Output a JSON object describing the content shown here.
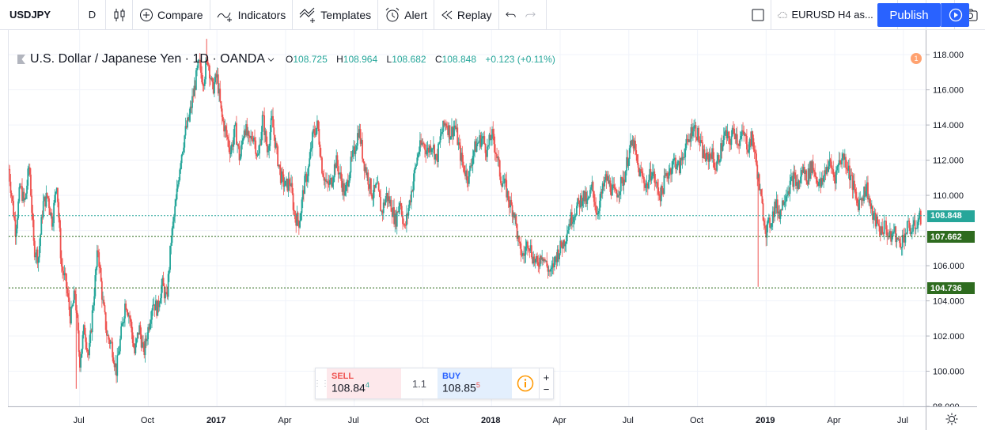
{
  "toolbar": {
    "symbol": "USDJPY",
    "interval": "D",
    "compare": "Compare",
    "indicators": "Indicators",
    "templates": "Templates",
    "alert": "Alert",
    "replay": "Replay",
    "layout": "EURUSD H4 as...",
    "publish": "Publish"
  },
  "legend": {
    "title": "U.S. Dollar / Japanese Yen · 1D · OANDA",
    "o_label": "O",
    "o": "108.725",
    "h_label": "H",
    "h": "108.964",
    "l_label": "L",
    "l": "108.682",
    "c_label": "C",
    "c": "108.848",
    "change": "+0.123 (+0.11%)"
  },
  "orange_badge": "1",
  "trade": {
    "sell_label": "SELL",
    "sell_main": "108.84",
    "sell_sup": "4",
    "spread": "1.1",
    "buy_label": "BUY",
    "buy_main": "108.85",
    "buy_sup": "5",
    "plus": "+",
    "minus": "−"
  },
  "price_tags": {
    "last": "108.848",
    "line1": "107.662",
    "line2": "104.736"
  },
  "colors": {
    "up": "#26a69a",
    "down": "#ef5350",
    "last_line": "#26a69a",
    "hline": "#2e6b1f"
  },
  "chart_data": {
    "type": "candlestick",
    "symbol": "USDJPY",
    "interval": "1D",
    "ylim": [
      98,
      119.4
    ],
    "yticks": [
      "118.000",
      "116.000",
      "114.000",
      "112.000",
      "110.000",
      "106.000",
      "104.000",
      "102.000",
      "100.000",
      "98.000"
    ],
    "xticks": [
      {
        "label": "Jul",
        "m": 6.5
      },
      {
        "label": "Oct",
        "m": 9.5
      },
      {
        "label": "2017",
        "m": 12.5
      },
      {
        "label": "Apr",
        "m": 15.5
      },
      {
        "label": "Jul",
        "m": 18.5
      },
      {
        "label": "Oct",
        "m": 21.5
      },
      {
        "label": "2018",
        "m": 24.5
      },
      {
        "label": "Apr",
        "m": 27.5
      },
      {
        "label": "Jul",
        "m": 30.5
      },
      {
        "label": "Oct",
        "m": 33.5
      },
      {
        "label": "2019",
        "m": 36.5
      },
      {
        "label": "Apr",
        "m": 39.5
      },
      {
        "label": "Jul",
        "m": 42.5
      }
    ],
    "xlim_months": [
      3.4,
      43.3
    ],
    "last_price": 108.848,
    "hlines": [
      107.662,
      104.736
    ],
    "path": [
      [
        3.4,
        111.5
      ],
      [
        3.7,
        108.0
      ],
      [
        3.9,
        110.5
      ],
      [
        4.1,
        109.5
      ],
      [
        4.3,
        111.8
      ],
      [
        4.5,
        107.0
      ],
      [
        4.7,
        106.5
      ],
      [
        4.9,
        109.5
      ],
      [
        5.1,
        110.0
      ],
      [
        5.3,
        108.5
      ],
      [
        5.5,
        110.8
      ],
      [
        5.7,
        106.0
      ],
      [
        5.9,
        105.0
      ],
      [
        6.1,
        103.0
      ],
      [
        6.3,
        104.5
      ],
      [
        6.5,
        100.5
      ],
      [
        6.7,
        102.5
      ],
      [
        6.9,
        100.8
      ],
      [
        7.1,
        104.0
      ],
      [
        7.3,
        107.0
      ],
      [
        7.5,
        104.0
      ],
      [
        7.7,
        102.0
      ],
      [
        7.9,
        101.5
      ],
      [
        8.1,
        100.0
      ],
      [
        8.3,
        102.0
      ],
      [
        8.5,
        104.0
      ],
      [
        8.7,
        103.0
      ],
      [
        8.9,
        101.0
      ],
      [
        9.1,
        102.5
      ],
      [
        9.3,
        101.0
      ],
      [
        9.5,
        102.5
      ],
      [
        9.7,
        104.0
      ],
      [
        9.9,
        103.5
      ],
      [
        10.1,
        105.0
      ],
      [
        10.3,
        104.0
      ],
      [
        10.5,
        107.5
      ],
      [
        10.7,
        109.5
      ],
      [
        10.9,
        112.0
      ],
      [
        11.1,
        113.5
      ],
      [
        11.3,
        114.5
      ],
      [
        11.5,
        116.0
      ],
      [
        11.7,
        117.5
      ],
      [
        11.9,
        116.5
      ],
      [
        12.1,
        117.8
      ],
      [
        12.3,
        116.0
      ],
      [
        12.5,
        116.8
      ],
      [
        12.7,
        114.5
      ],
      [
        12.9,
        113.5
      ],
      [
        13.1,
        112.5
      ],
      [
        13.3,
        113.8
      ],
      [
        13.5,
        112.0
      ],
      [
        13.7,
        114.0
      ],
      [
        13.9,
        113.0
      ],
      [
        14.1,
        113.5
      ],
      [
        14.3,
        112.0
      ],
      [
        14.5,
        114.5
      ],
      [
        14.7,
        112.5
      ],
      [
        14.9,
        114.3
      ],
      [
        15.1,
        112.5
      ],
      [
        15.3,
        111.0
      ],
      [
        15.5,
        110.5
      ],
      [
        15.7,
        110.8
      ],
      [
        15.9,
        108.8
      ],
      [
        16.1,
        108.5
      ],
      [
        16.3,
        110.5
      ],
      [
        16.5,
        111.5
      ],
      [
        16.7,
        113.5
      ],
      [
        16.9,
        114.0
      ],
      [
        17.1,
        111.5
      ],
      [
        17.3,
        110.5
      ],
      [
        17.5,
        110.8
      ],
      [
        17.7,
        112.0
      ],
      [
        17.9,
        111.0
      ],
      [
        18.1,
        110.0
      ],
      [
        18.3,
        111.5
      ],
      [
        18.5,
        112.5
      ],
      [
        18.7,
        113.8
      ],
      [
        18.9,
        112.0
      ],
      [
        19.1,
        111.0
      ],
      [
        19.3,
        110.0
      ],
      [
        19.5,
        110.5
      ],
      [
        19.7,
        109.0
      ],
      [
        19.9,
        110.0
      ],
      [
        20.1,
        109.5
      ],
      [
        20.3,
        108.5
      ],
      [
        20.5,
        109.8
      ],
      [
        20.7,
        108.0
      ],
      [
        20.9,
        109.5
      ],
      [
        21.1,
        111.0
      ],
      [
        21.3,
        112.5
      ],
      [
        21.5,
        113.0
      ],
      [
        21.7,
        112.5
      ],
      [
        21.9,
        113.0
      ],
      [
        22.1,
        112.0
      ],
      [
        22.3,
        113.5
      ],
      [
        22.5,
        114.2
      ],
      [
        22.7,
        113.5
      ],
      [
        22.9,
        114.0
      ],
      [
        23.1,
        112.5
      ],
      [
        23.3,
        111.5
      ],
      [
        23.5,
        111.0
      ],
      [
        23.7,
        112.5
      ],
      [
        23.9,
        113.0
      ],
      [
        24.1,
        113.3
      ],
      [
        24.3,
        112.5
      ],
      [
        24.5,
        113.5
      ],
      [
        24.7,
        112.5
      ],
      [
        24.9,
        111.0
      ],
      [
        25.1,
        110.5
      ],
      [
        25.3,
        109.5
      ],
      [
        25.5,
        109.0
      ],
      [
        25.7,
        107.0
      ],
      [
        25.9,
        106.5
      ],
      [
        26.1,
        107.5
      ],
      [
        26.3,
        106.5
      ],
      [
        26.5,
        106.0
      ],
      [
        26.7,
        106.8
      ],
      [
        26.9,
        106.0
      ],
      [
        27.1,
        105.5
      ],
      [
        27.3,
        106.5
      ],
      [
        27.5,
        107.0
      ],
      [
        27.7,
        107.5
      ],
      [
        27.9,
        108.5
      ],
      [
        28.1,
        109.0
      ],
      [
        28.3,
        109.5
      ],
      [
        28.5,
        110.0
      ],
      [
        28.7,
        109.5
      ],
      [
        28.9,
        110.5
      ],
      [
        29.1,
        109.0
      ],
      [
        29.3,
        110.0
      ],
      [
        29.5,
        111.0
      ],
      [
        29.7,
        110.5
      ],
      [
        29.9,
        110.0
      ],
      [
        30.1,
        110.5
      ],
      [
        30.3,
        111.0
      ],
      [
        30.5,
        112.5
      ],
      [
        30.7,
        113.0
      ],
      [
        30.9,
        111.5
      ],
      [
        31.1,
        111.0
      ],
      [
        31.3,
        110.5
      ],
      [
        31.5,
        111.5
      ],
      [
        31.7,
        110.5
      ],
      [
        31.9,
        110.0
      ],
      [
        32.1,
        111.0
      ],
      [
        32.3,
        111.5
      ],
      [
        32.5,
        112.0
      ],
      [
        32.7,
        111.5
      ],
      [
        32.9,
        112.5
      ],
      [
        33.1,
        113.0
      ],
      [
        33.3,
        114.0
      ],
      [
        33.5,
        113.5
      ],
      [
        33.7,
        112.5
      ],
      [
        33.9,
        112.0
      ],
      [
        34.1,
        112.5
      ],
      [
        34.3,
        111.5
      ],
      [
        34.5,
        112.5
      ],
      [
        34.7,
        113.5
      ],
      [
        34.9,
        113.0
      ],
      [
        35.1,
        113.8
      ],
      [
        35.3,
        113.0
      ],
      [
        35.5,
        113.5
      ],
      [
        35.7,
        112.8
      ],
      [
        35.9,
        113.3
      ],
      [
        36.1,
        111.5
      ],
      [
        36.3,
        109.5
      ],
      [
        36.5,
        108.0
      ],
      [
        36.7,
        108.5
      ],
      [
        36.9,
        109.5
      ],
      [
        37.1,
        109.0
      ],
      [
        37.3,
        110.0
      ],
      [
        37.5,
        110.5
      ],
      [
        37.7,
        111.0
      ],
      [
        37.9,
        110.5
      ],
      [
        38.1,
        111.5
      ],
      [
        38.3,
        111.0
      ],
      [
        38.5,
        111.8
      ],
      [
        38.7,
        111.0
      ],
      [
        38.9,
        110.5
      ],
      [
        39.1,
        111.5
      ],
      [
        39.3,
        111.8
      ],
      [
        39.5,
        111.0
      ],
      [
        39.7,
        112.0
      ],
      [
        39.9,
        112.2
      ],
      [
        40.1,
        111.5
      ],
      [
        40.3,
        110.5
      ],
      [
        40.5,
        109.5
      ],
      [
        40.7,
        110.0
      ],
      [
        40.9,
        110.5
      ],
      [
        41.1,
        109.0
      ],
      [
        41.3,
        108.5
      ],
      [
        41.5,
        108.0
      ],
      [
        41.7,
        108.3
      ],
      [
        41.9,
        107.5
      ],
      [
        42.1,
        108.0
      ],
      [
        42.3,
        107.2
      ],
      [
        42.5,
        107.6
      ],
      [
        42.7,
        108.2
      ],
      [
        42.9,
        108.0
      ],
      [
        43.1,
        108.5
      ],
      [
        43.3,
        108.85
      ]
    ]
  }
}
